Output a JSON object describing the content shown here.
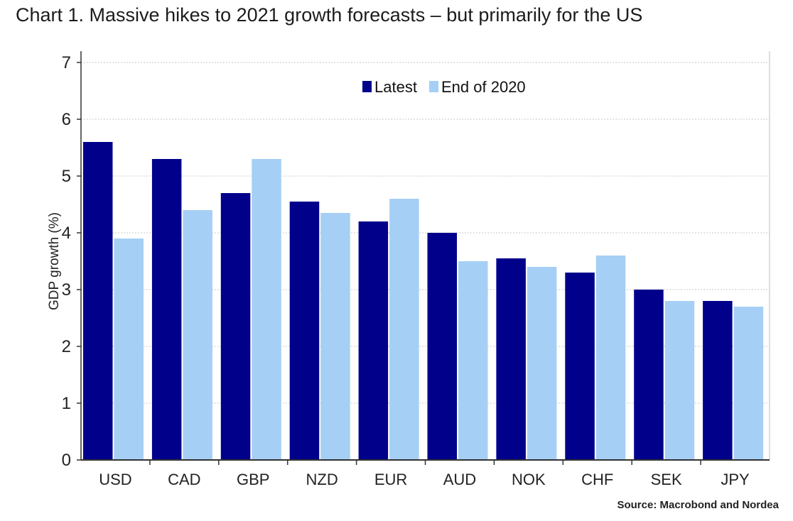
{
  "title": "Chart 1. Massive hikes to 2021 growth forecasts – but primarily for the US",
  "source": "Source: Macrobond and Nordea",
  "chart_data": {
    "type": "bar",
    "categories": [
      "USD",
      "CAD",
      "GBP",
      "NZD",
      "EUR",
      "AUD",
      "NOK",
      "CHF",
      "SEK",
      "JPY"
    ],
    "series": [
      {
        "name": "Latest",
        "color": "#00008b",
        "values": [
          5.6,
          5.3,
          4.7,
          4.55,
          4.2,
          4.0,
          3.55,
          3.3,
          3.0,
          2.8
        ]
      },
      {
        "name": "End of 2020",
        "color": "#a6cff5",
        "values": [
          3.9,
          4.4,
          5.3,
          4.35,
          4.6,
          3.5,
          3.4,
          3.6,
          2.8,
          2.7
        ]
      }
    ],
    "ylabel": "GDP growth (%)",
    "xlabel": "",
    "ylim": [
      0,
      7
    ],
    "yticks": [
      0,
      1,
      2,
      3,
      4,
      5,
      6,
      7
    ],
    "grid": true,
    "legend": "top-center"
  }
}
